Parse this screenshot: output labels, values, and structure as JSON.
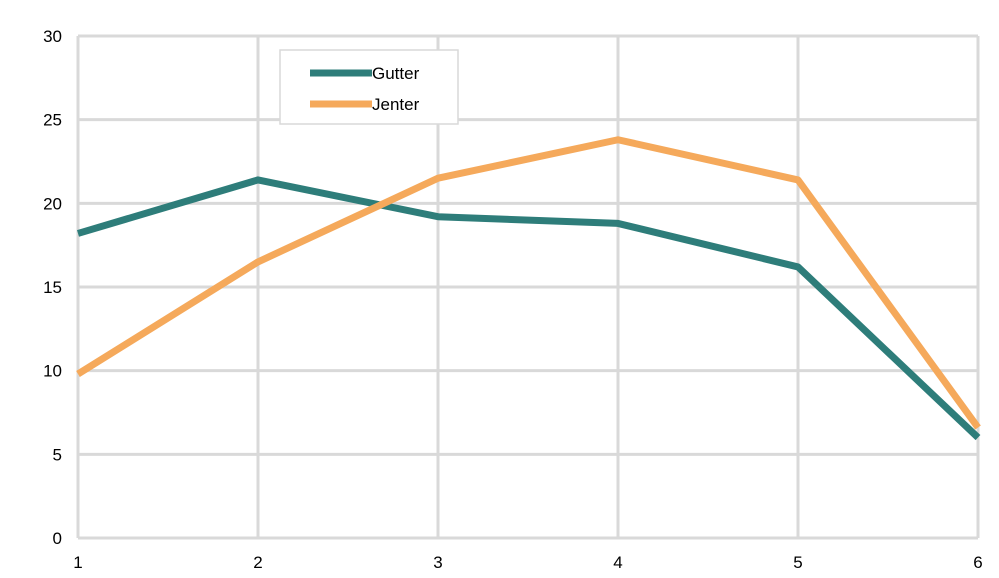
{
  "chart_data": {
    "type": "line",
    "title": "",
    "xlabel": "",
    "ylabel": "",
    "x": [
      1,
      2,
      3,
      4,
      5,
      6
    ],
    "xlim": [
      1,
      6
    ],
    "ylim": [
      0,
      30
    ],
    "y_ticks": [
      0,
      5,
      10,
      15,
      20,
      25,
      30
    ],
    "x_ticks": [
      1,
      2,
      3,
      4,
      5,
      6
    ],
    "grid": true,
    "legend_position": "top-left",
    "series": [
      {
        "name": "Gutter",
        "color": "#2e7d7a",
        "values": [
          18.2,
          21.4,
          19.2,
          18.8,
          16.2,
          6.0
        ]
      },
      {
        "name": "Jenter",
        "color": "#f5a95b",
        "values": [
          9.8,
          16.5,
          21.5,
          23.8,
          21.4,
          6.6
        ]
      }
    ]
  }
}
